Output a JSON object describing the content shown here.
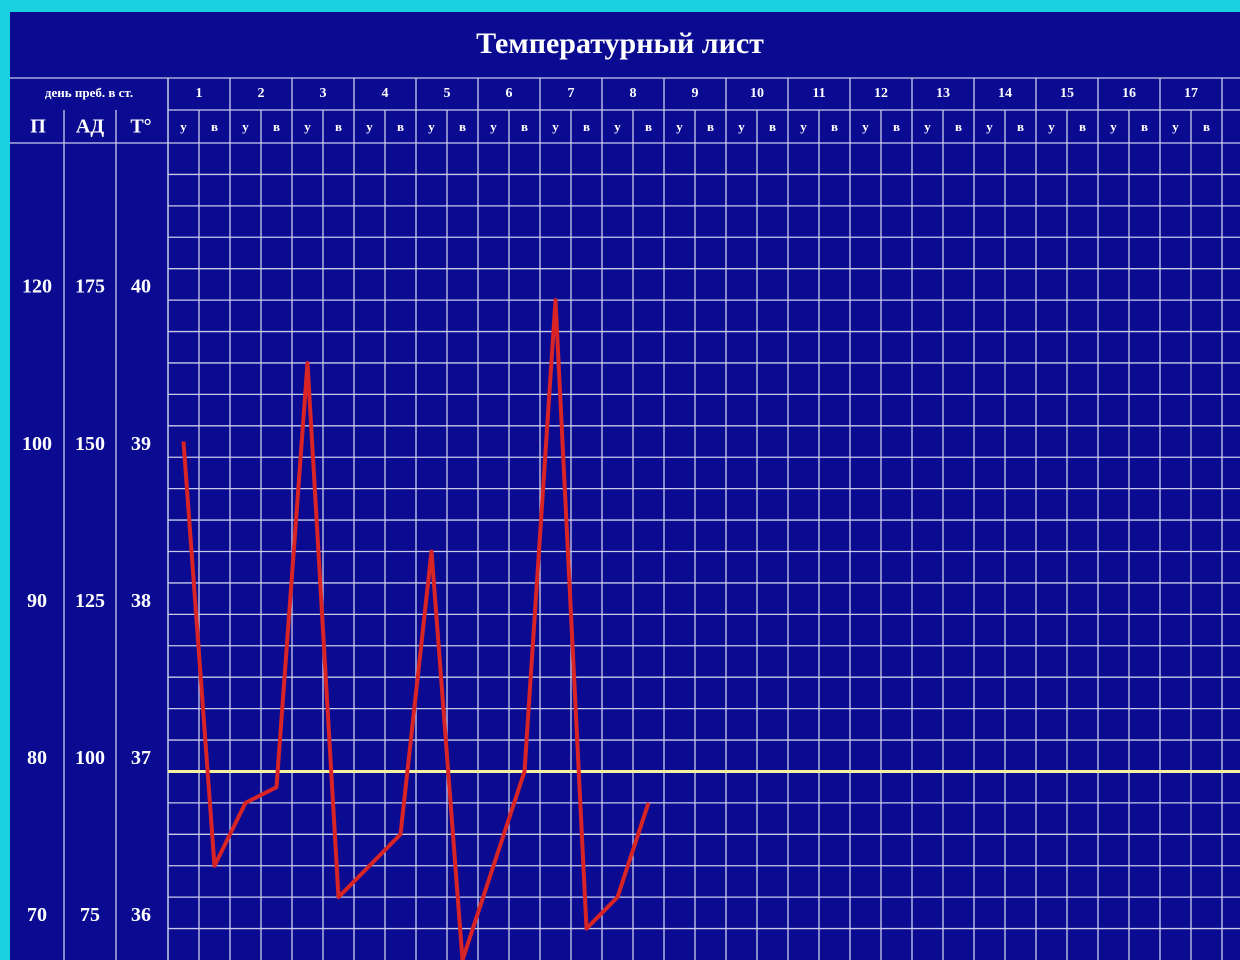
{
  "chart_data": {
    "type": "line",
    "title": "Температурный лист",
    "header_stay": "день преб. в ст.",
    "header_pulse": "П",
    "header_bp": "АД",
    "header_temp": "Т°",
    "days": [
      1,
      2,
      3,
      4,
      5,
      6,
      7,
      8,
      9,
      10,
      11,
      12,
      13,
      14,
      15,
      16,
      17
    ],
    "categories": [
      "у",
      "в",
      "у",
      "в",
      "у",
      "в",
      "у",
      "в",
      "у",
      "в",
      "у",
      "в",
      "у",
      "в",
      "у",
      "в",
      "у",
      "в",
      "у",
      "в",
      "у",
      "в",
      "у",
      "в",
      "у",
      "в",
      "у",
      "в",
      "у",
      "в",
      "у",
      "в",
      "у",
      "в"
    ],
    "series": [
      {
        "name": "Т°",
        "color": "#d82424",
        "values": [
          39.1,
          36.4,
          36.8,
          36.9,
          39.6,
          36.2,
          36.4,
          36.6,
          38.4,
          35.8,
          36.4,
          37.0,
          40.0,
          36.0,
          36.2,
          36.8,
          null,
          null,
          null,
          null,
          null,
          null,
          null,
          null,
          null,
          null,
          null,
          null,
          null,
          null,
          null,
          null,
          null,
          null
        ]
      }
    ],
    "ylim": [
      35.8,
      41
    ],
    "yticks": [
      36,
      37,
      38,
      39,
      40
    ],
    "pulse_ticks": [
      70,
      80,
      90,
      100,
      120
    ],
    "bp_ticks": [
      75,
      100,
      125,
      150,
      175
    ],
    "minor_yticks": [
      36.2,
      36.4,
      36.6,
      36.8,
      37.2,
      37.4,
      37.6,
      37.8,
      38.2,
      38.4,
      38.6,
      38.8,
      39.2,
      39.4,
      39.6,
      39.8,
      40.2,
      40.4,
      40.6,
      40.8
    ],
    "normal_line": 37,
    "grid": true
  }
}
